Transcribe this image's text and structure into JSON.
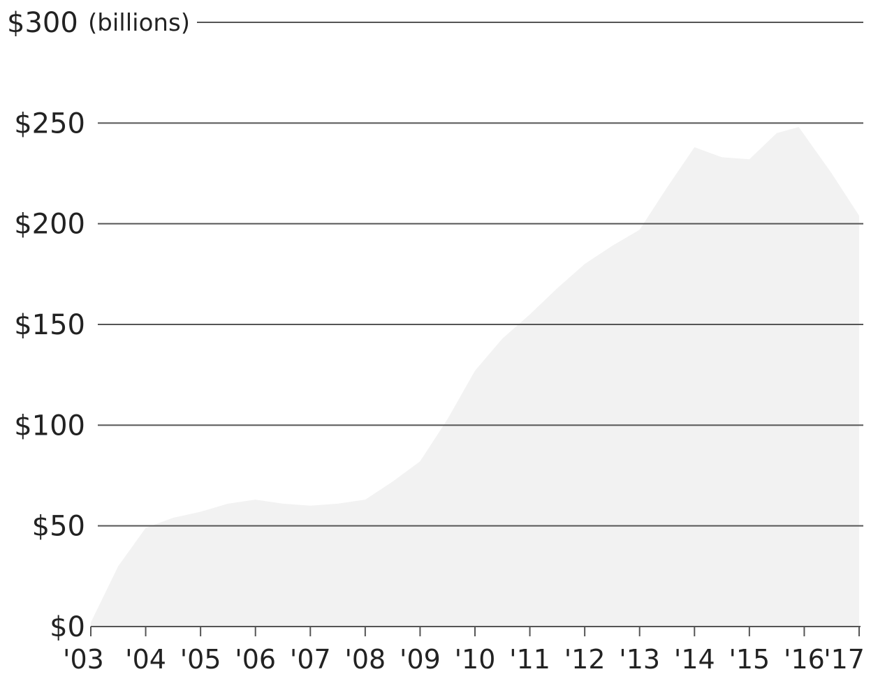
{
  "chart_data": {
    "type": "area",
    "unit_label": "(billions)",
    "x": [
      "'03",
      "'04",
      "'05",
      "'06",
      "'07",
      "'08",
      "'09",
      "'10",
      "'11",
      "'12",
      "'13",
      "'14",
      "'15",
      "'16",
      "'17"
    ],
    "y_tick_labels": [
      "$0",
      "$50",
      "$100",
      "$150",
      "$200",
      "$250",
      "$300"
    ],
    "y_tick_values": [
      0,
      50,
      100,
      150,
      200,
      250,
      300
    ],
    "ylim": [
      0,
      300
    ],
    "grid": true,
    "colors": {
      "area": "#f2f2f2",
      "grid": "#555555",
      "text": "#222222"
    },
    "series": [
      {
        "points": [
          [
            2003.0,
            2
          ],
          [
            2003.5,
            30
          ],
          [
            2004.0,
            49
          ],
          [
            2004.5,
            54
          ],
          [
            2005.0,
            57
          ],
          [
            2005.5,
            61
          ],
          [
            2006.0,
            63
          ],
          [
            2006.5,
            61
          ],
          [
            2007.0,
            60
          ],
          [
            2007.5,
            61
          ],
          [
            2008.0,
            63
          ],
          [
            2008.5,
            72
          ],
          [
            2009.0,
            82
          ],
          [
            2009.5,
            103
          ],
          [
            2010.0,
            127
          ],
          [
            2010.5,
            143
          ],
          [
            2011.0,
            155
          ],
          [
            2011.5,
            168
          ],
          [
            2012.0,
            180
          ],
          [
            2012.5,
            189
          ],
          [
            2013.0,
            197
          ],
          [
            2013.5,
            218
          ],
          [
            2014.0,
            238
          ],
          [
            2014.5,
            233
          ],
          [
            2015.0,
            232
          ],
          [
            2015.5,
            245
          ],
          [
            2015.9,
            248
          ],
          [
            2016.5,
            225
          ],
          [
            2017.0,
            204
          ]
        ]
      }
    ]
  }
}
